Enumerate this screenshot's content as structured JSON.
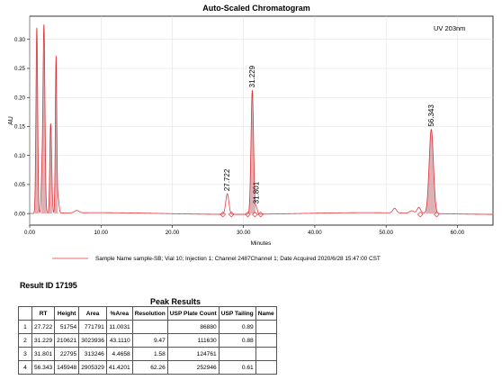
{
  "chart_data": {
    "type": "line",
    "title": "Auto-Scaled Chromatogram",
    "annotation": "UV 203nm",
    "xlabel": "Minutes",
    "ylabel": "AU",
    "xlim": [
      0,
      65
    ],
    "ylim": [
      -0.02,
      0.34
    ],
    "xticks": [
      "0.00",
      "10.00",
      "20.00",
      "30.00",
      "40.00",
      "50.00",
      "60.00"
    ],
    "xtick_values": [
      0,
      10,
      20,
      30,
      40,
      50,
      60
    ],
    "yticks": [
      "0.00",
      "0.05",
      "0.10",
      "0.15",
      "0.20",
      "0.25",
      "0.30"
    ],
    "ytick_values": [
      0,
      0.05,
      0.1,
      0.15,
      0.2,
      0.25,
      0.3
    ],
    "line_color": "#e8383d",
    "baseline": 0.0,
    "peaks": [
      {
        "rt": 1.0,
        "height": 0.32,
        "width": 0.12
      },
      {
        "rt": 1.7,
        "height": 0.05,
        "width": 0.1
      },
      {
        "rt": 2.0,
        "height": 0.325,
        "width": 0.14
      },
      {
        "rt": 2.9,
        "height": 0.12,
        "width": 0.1
      },
      {
        "rt": 3.05,
        "height": 0.08,
        "width": 0.1
      },
      {
        "rt": 3.7,
        "height": 0.27,
        "width": 0.1
      },
      {
        "rt": 4.0,
        "height": 0.025,
        "width": 0.12
      },
      {
        "rt": 6.6,
        "height": 0.004,
        "width": 0.3
      },
      {
        "rt": 27.722,
        "height": 0.0355,
        "width": 0.22,
        "label": "27.722"
      },
      {
        "rt": 31.229,
        "height": 0.2135,
        "width": 0.18,
        "label": "31.229"
      },
      {
        "rt": 31.801,
        "height": 0.012,
        "width": 0.14,
        "label": "31.801"
      },
      {
        "rt": 51.2,
        "height": 0.008,
        "width": 0.25
      },
      {
        "rt": 53.6,
        "height": 0.004,
        "width": 0.3
      },
      {
        "rt": 54.6,
        "height": 0.01,
        "width": 0.25
      },
      {
        "rt": 56.343,
        "height": 0.145,
        "width": 0.3,
        "label": "56.343"
      }
    ],
    "integration_marks": [
      27.1,
      28.3,
      30.6,
      31.6,
      32.4,
      54.8,
      57.1
    ],
    "legend": "Sample Name sample-SB; Vial 10; Injection 1; Channel 2487Channel 1; Date Acquired 2020/6/28 15:47:00 CST"
  },
  "result_id": "Result ID 17195",
  "table_title": "Peak Results",
  "table": {
    "columns": [
      "",
      "RT",
      "Height",
      "Area",
      "%Area",
      "Resolution",
      "USP Plate Count",
      "USP Tailing",
      "Name"
    ],
    "rows": [
      [
        "1",
        "27.722",
        "51754",
        "771791",
        "11.0031",
        "",
        "86880",
        "0.89",
        ""
      ],
      [
        "2",
        "31.229",
        "210621",
        "3023936",
        "43.1110",
        "9.47",
        "111630",
        "0.88",
        ""
      ],
      [
        "3",
        "31.801",
        "22795",
        "313246",
        "4.4658",
        "1.58",
        "124761",
        "",
        ""
      ],
      [
        "4",
        "56.343",
        "145948",
        "2905329",
        "41.4201",
        "62.26",
        "252946",
        "0.61",
        ""
      ]
    ]
  }
}
